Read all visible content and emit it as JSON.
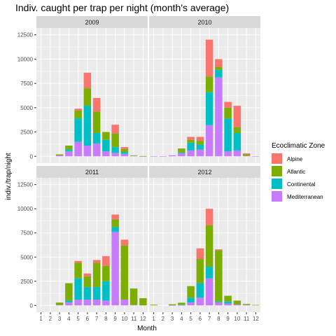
{
  "chart_data": {
    "type": "bar",
    "stacked": true,
    "faceted": true,
    "title": "Indiv. caught per trap per night (month's average)",
    "xlabel": "Month",
    "ylabel": "indiv./trap/night",
    "categories": [
      "1",
      "2",
      "3",
      "4",
      "5",
      "6",
      "7",
      "8",
      "9",
      "10",
      "11",
      "12"
    ],
    "y_ticks": [
      "0",
      "2500",
      "5000",
      "7500",
      "10000",
      "12500"
    ],
    "ylim": [
      -700,
      13200
    ],
    "grid": true,
    "legend": {
      "title": "Ecoclimatic Zone",
      "position": "right",
      "entries": [
        "Alpine",
        "Atlantic",
        "Continental",
        "Mediterranean"
      ]
    },
    "colors": {
      "Alpine": "#F8766D",
      "Atlantic": "#7CAE00",
      "Continental": "#00BFC4",
      "Mediterranean": "#C77CFF",
      "panel_bg": "#EBEBEB",
      "strip_bg": "#D9D9D9",
      "grid": "#FFFFFF"
    },
    "stack_order_bottom_to_top": [
      "Mediterranean",
      "Continental",
      "Atlantic",
      "Alpine"
    ],
    "facets": [
      {
        "label": "2009",
        "series": [
          {
            "name": "Mediterranean",
            "values": [
              0,
              0,
              100,
              500,
              1500,
              1100,
              1300,
              500,
              350,
              250,
              50,
              10
            ]
          },
          {
            "name": "Continental",
            "values": [
              0,
              0,
              0,
              200,
              2400,
              4100,
              1100,
              1200,
              600,
              200,
              0,
              0
            ]
          },
          {
            "name": "Atlantic",
            "values": [
              0,
              0,
              100,
              400,
              800,
              1800,
              2200,
              800,
              1400,
              300,
              50,
              20
            ]
          },
          {
            "name": "Alpine",
            "values": [
              0,
              0,
              0,
              0,
              200,
              1600,
              1400,
              0,
              900,
              200,
              0,
              0
            ]
          }
        ]
      },
      {
        "label": "2010",
        "series": [
          {
            "name": "Mediterranean",
            "values": [
              10,
              20,
              100,
              300,
              600,
              700,
              3200,
              8100,
              500,
              600,
              50,
              10
            ]
          },
          {
            "name": "Continental",
            "values": [
              0,
              0,
              0,
              100,
              800,
              500,
              3400,
              800,
              3400,
              1800,
              0,
              0
            ]
          },
          {
            "name": "Atlantic",
            "values": [
              0,
              0,
              0,
              400,
              300,
              400,
              1600,
              300,
              1100,
              600,
              150,
              0
            ]
          },
          {
            "name": "Alpine",
            "values": [
              0,
              0,
              0,
              0,
              300,
              400,
              3800,
              800,
              600,
              2200,
              100,
              0
            ]
          }
        ]
      },
      {
        "label": "2011",
        "series": [
          {
            "name": "Mediterranean",
            "values": [
              0,
              0,
              50,
              300,
              600,
              600,
              600,
              500,
              7600,
              600,
              50,
              0
            ]
          },
          {
            "name": "Continental",
            "values": [
              0,
              0,
              0,
              200,
              2200,
              1300,
              1300,
              2000,
              500,
              0,
              0,
              0
            ]
          },
          {
            "name": "Atlantic",
            "values": [
              0,
              0,
              250,
              1800,
              1600,
              1100,
              2500,
              1600,
              800,
              5600,
              1700,
              750
            ]
          },
          {
            "name": "Alpine",
            "values": [
              0,
              0,
              0,
              0,
              200,
              300,
              300,
              1000,
              500,
              600,
              0,
              0
            ]
          }
        ]
      },
      {
        "label": "2012",
        "series": [
          {
            "name": "Mediterranean",
            "values": [
              0,
              0,
              20,
              30,
              300,
              800,
              2800,
              300,
              200,
              100,
              50,
              0
            ]
          },
          {
            "name": "Continental",
            "values": [
              0,
              0,
              0,
              50,
              500,
              1500,
              1200,
              100,
              200,
              0,
              0,
              0
            ]
          },
          {
            "name": "Atlantic",
            "values": [
              80,
              0,
              100,
              200,
              1200,
              2500,
              4300,
              5300,
              600,
              400,
              100,
              50
            ]
          },
          {
            "name": "Alpine",
            "values": [
              0,
              0,
              0,
              0,
              0,
              1100,
              1700,
              100,
              0,
              0,
              0,
              0
            ]
          }
        ]
      }
    ]
  }
}
